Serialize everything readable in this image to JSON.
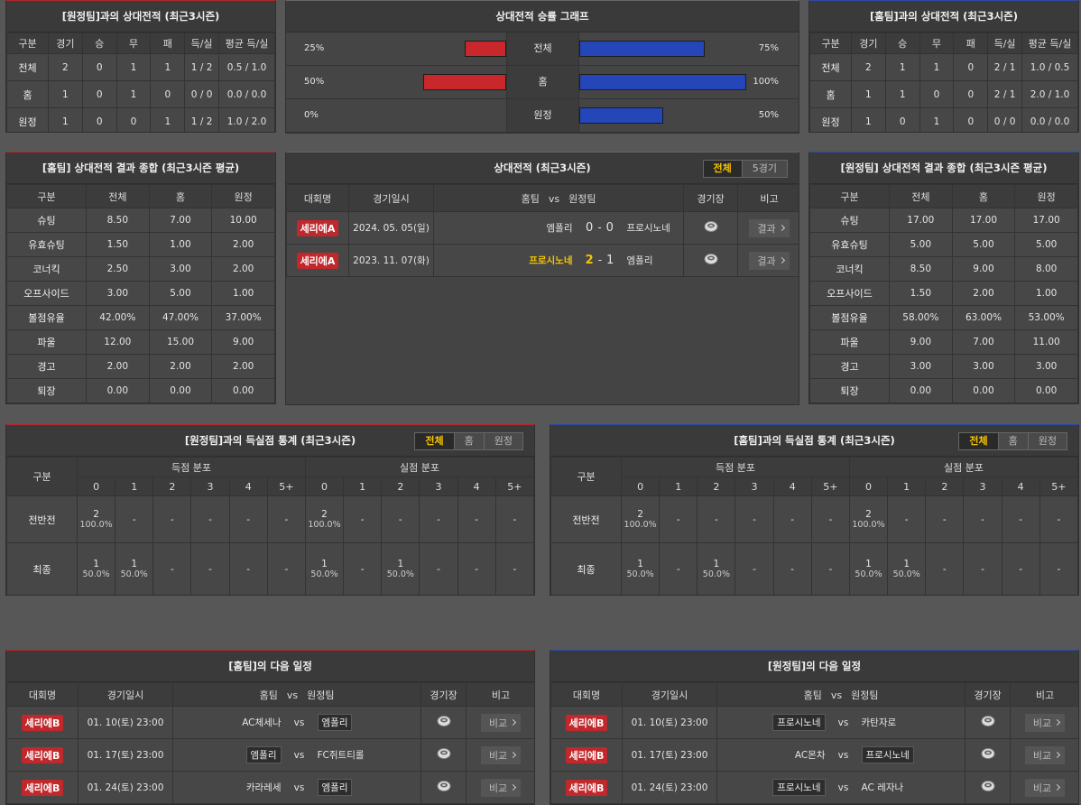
{
  "h2h_away": {
    "title": "[원정팀]과의 상대전적 (최근3시즌)",
    "columns": [
      "구분",
      "경기",
      "승",
      "무",
      "패",
      "득/실",
      "평균 득/실"
    ],
    "rows": [
      [
        "전체",
        "2",
        "0",
        "1",
        "1",
        "1 / 2",
        "0.5 / 1.0"
      ],
      [
        "홈",
        "1",
        "0",
        "1",
        "0",
        "0 / 0",
        "0.0 / 0.0"
      ],
      [
        "원정",
        "1",
        "0",
        "0",
        "1",
        "1 / 2",
        "1.0 / 2.0"
      ]
    ]
  },
  "win_graph": {
    "title": "상대전적 승률 그래프",
    "categories": [
      "전체",
      "홈",
      "원정"
    ],
    "left_values": [
      25,
      50,
      0
    ],
    "left_value_labels": [
      "25%",
      "50%",
      "0%"
    ],
    "left_color": "#c8282c",
    "right_values": [
      75,
      100,
      50
    ],
    "right_value_labels": [
      "75%",
      "100%",
      "50%"
    ],
    "right_color": "#2446b8",
    "xlim": [
      0,
      100
    ]
  },
  "h2h_home": {
    "title": "[홈팀]과의 상대전적 (최근3시즌)",
    "columns": [
      "구분",
      "경기",
      "승",
      "무",
      "패",
      "득/실",
      "평균 득/실"
    ],
    "rows": [
      [
        "전체",
        "2",
        "1",
        "1",
        "0",
        "2 / 1",
        "1.0 / 0.5"
      ],
      [
        "홈",
        "1",
        "1",
        "0",
        "0",
        "2 / 1",
        "2.0 / 1.0"
      ],
      [
        "원정",
        "1",
        "0",
        "1",
        "0",
        "0 / 0",
        "0.0 / 0.0"
      ]
    ]
  },
  "stats_home": {
    "title": "[홈팀] 상대전적 결과 종합 (최근3시즌 평균)",
    "columns": [
      "구분",
      "전체",
      "홈",
      "원정"
    ],
    "rows": [
      [
        "슈팅",
        "8.50",
        "7.00",
        "10.00"
      ],
      [
        "유효슈팅",
        "1.50",
        "1.00",
        "2.00"
      ],
      [
        "코너킥",
        "2.50",
        "3.00",
        "2.00"
      ],
      [
        "오프사이드",
        "3.00",
        "5.00",
        "1.00"
      ],
      [
        "볼점유율",
        "42.00%",
        "47.00%",
        "37.00%"
      ],
      [
        "파울",
        "12.00",
        "15.00",
        "9.00"
      ],
      [
        "경고",
        "2.00",
        "2.00",
        "2.00"
      ],
      [
        "퇴장",
        "0.00",
        "0.00",
        "0.00"
      ]
    ]
  },
  "recent": {
    "title": "상대전적 (최근3시즌)",
    "tabs": [
      "전체",
      "5경기"
    ],
    "active_tab": 0,
    "columns": [
      "대회명",
      "경기일시",
      "홈팀",
      "vs",
      "원정팀",
      "경기장",
      "비고"
    ],
    "matches": [
      {
        "league": "세리에A",
        "date": "2024. 05. 05(일)",
        "home": "엠폴리",
        "home_score": "0",
        "sep": "-",
        "away_score": "0",
        "away": "프로시노네",
        "button": "결과"
      },
      {
        "league": "세리에A",
        "date": "2023. 11. 07(화)",
        "home": "프로시노네",
        "home_score": "2",
        "sep": "-",
        "away_score": "1",
        "away": "엠폴리",
        "button": "결과",
        "highlight": "home"
      }
    ]
  },
  "stats_away": {
    "title": "[원정팀] 상대전적 결과 종합 (최근3시즌 평균)",
    "columns": [
      "구분",
      "전체",
      "홈",
      "원정"
    ],
    "rows": [
      [
        "슈팅",
        "17.00",
        "17.00",
        "17.00"
      ],
      [
        "유효슈팅",
        "5.00",
        "5.00",
        "5.00"
      ],
      [
        "코너킥",
        "8.50",
        "9.00",
        "8.00"
      ],
      [
        "오프사이드",
        "1.50",
        "2.00",
        "1.00"
      ],
      [
        "볼점유율",
        "58.00%",
        "63.00%",
        "53.00%"
      ],
      [
        "파울",
        "9.00",
        "7.00",
        "11.00"
      ],
      [
        "경고",
        "3.00",
        "3.00",
        "3.00"
      ],
      [
        "퇴장",
        "0.00",
        "0.00",
        "0.00"
      ]
    ]
  },
  "goals_away": {
    "title": "[원정팀]과의 득실점 통계 (최근3시즌)",
    "tabs": [
      "전체",
      "홈",
      "원정"
    ],
    "active_tab": 0,
    "row_header": "구분",
    "groups": [
      "득점 분포",
      "실점 분포"
    ],
    "bins": [
      "0",
      "1",
      "2",
      "3",
      "4",
      "5+"
    ],
    "rows": [
      {
        "label": "전반전",
        "cells": [
          [
            "2",
            "100.0%"
          ],
          "-",
          "-",
          "-",
          "-",
          "-",
          [
            "2",
            "100.0%"
          ],
          "-",
          "-",
          "-",
          "-",
          "-"
        ]
      },
      {
        "label": "최종",
        "cells": [
          [
            "1",
            "50.0%"
          ],
          [
            "1",
            "50.0%"
          ],
          "-",
          "-",
          "-",
          "-",
          [
            "1",
            "50.0%"
          ],
          "-",
          [
            "1",
            "50.0%"
          ],
          "-",
          "-",
          "-"
        ]
      }
    ]
  },
  "goals_home": {
    "title": "[홈팀]과의 득실점 통계 (최근3시즌)",
    "tabs": [
      "전체",
      "홈",
      "원정"
    ],
    "active_tab": 0,
    "row_header": "구분",
    "groups": [
      "득점 분포",
      "실점 분포"
    ],
    "bins": [
      "0",
      "1",
      "2",
      "3",
      "4",
      "5+"
    ],
    "rows": [
      {
        "label": "전반전",
        "cells": [
          [
            "2",
            "100.0%"
          ],
          "-",
          "-",
          "-",
          "-",
          "-",
          [
            "2",
            "100.0%"
          ],
          "-",
          "-",
          "-",
          "-",
          "-"
        ]
      },
      {
        "label": "최종",
        "cells": [
          [
            "1",
            "50.0%"
          ],
          "-",
          [
            "1",
            "50.0%"
          ],
          "-",
          "-",
          "-",
          [
            "1",
            "50.0%"
          ],
          [
            "1",
            "50.0%"
          ],
          "-",
          "-",
          "-",
          "-"
        ]
      }
    ]
  },
  "next_home": {
    "title": "[홈팀]의 다음 일정",
    "columns": [
      "대회명",
      "경기일시",
      "홈팀",
      "vs",
      "원정팀",
      "경기장",
      "비고"
    ],
    "matches": [
      {
        "league": "세리에B",
        "date": "01. 10(토) 23:00",
        "home": "AC체세나",
        "vs": "vs",
        "away": "엠폴리",
        "button": "비교",
        "highlight": "away"
      },
      {
        "league": "세리에B",
        "date": "01. 17(토) 23:00",
        "home": "엠폴리",
        "vs": "vs",
        "away": "FC쥐트티롤",
        "button": "비교",
        "highlight": "home"
      },
      {
        "league": "세리에B",
        "date": "01. 24(토) 23:00",
        "home": "카라레세",
        "vs": "vs",
        "away": "엠폴리",
        "button": "비교",
        "highlight": "away"
      }
    ]
  },
  "next_away": {
    "title": "[원정팀]의 다음 일정",
    "columns": [
      "대회명",
      "경기일시",
      "홈팀",
      "vs",
      "원정팀",
      "경기장",
      "비고"
    ],
    "matches": [
      {
        "league": "세리에B",
        "date": "01. 10(토) 23:00",
        "home": "프로시노네",
        "vs": "vs",
        "away": "카탄자로",
        "button": "비교",
        "highlight": "home"
      },
      {
        "league": "세리에B",
        "date": "01. 17(토) 23:00",
        "home": "AC몬차",
        "vs": "vs",
        "away": "프로시노네",
        "button": "비교",
        "highlight": "away"
      },
      {
        "league": "세리에B",
        "date": "01. 24(토) 23:00",
        "home": "프로시노네",
        "vs": "vs",
        "away": "AC 레자나",
        "button": "비교",
        "highlight": "home"
      }
    ]
  }
}
